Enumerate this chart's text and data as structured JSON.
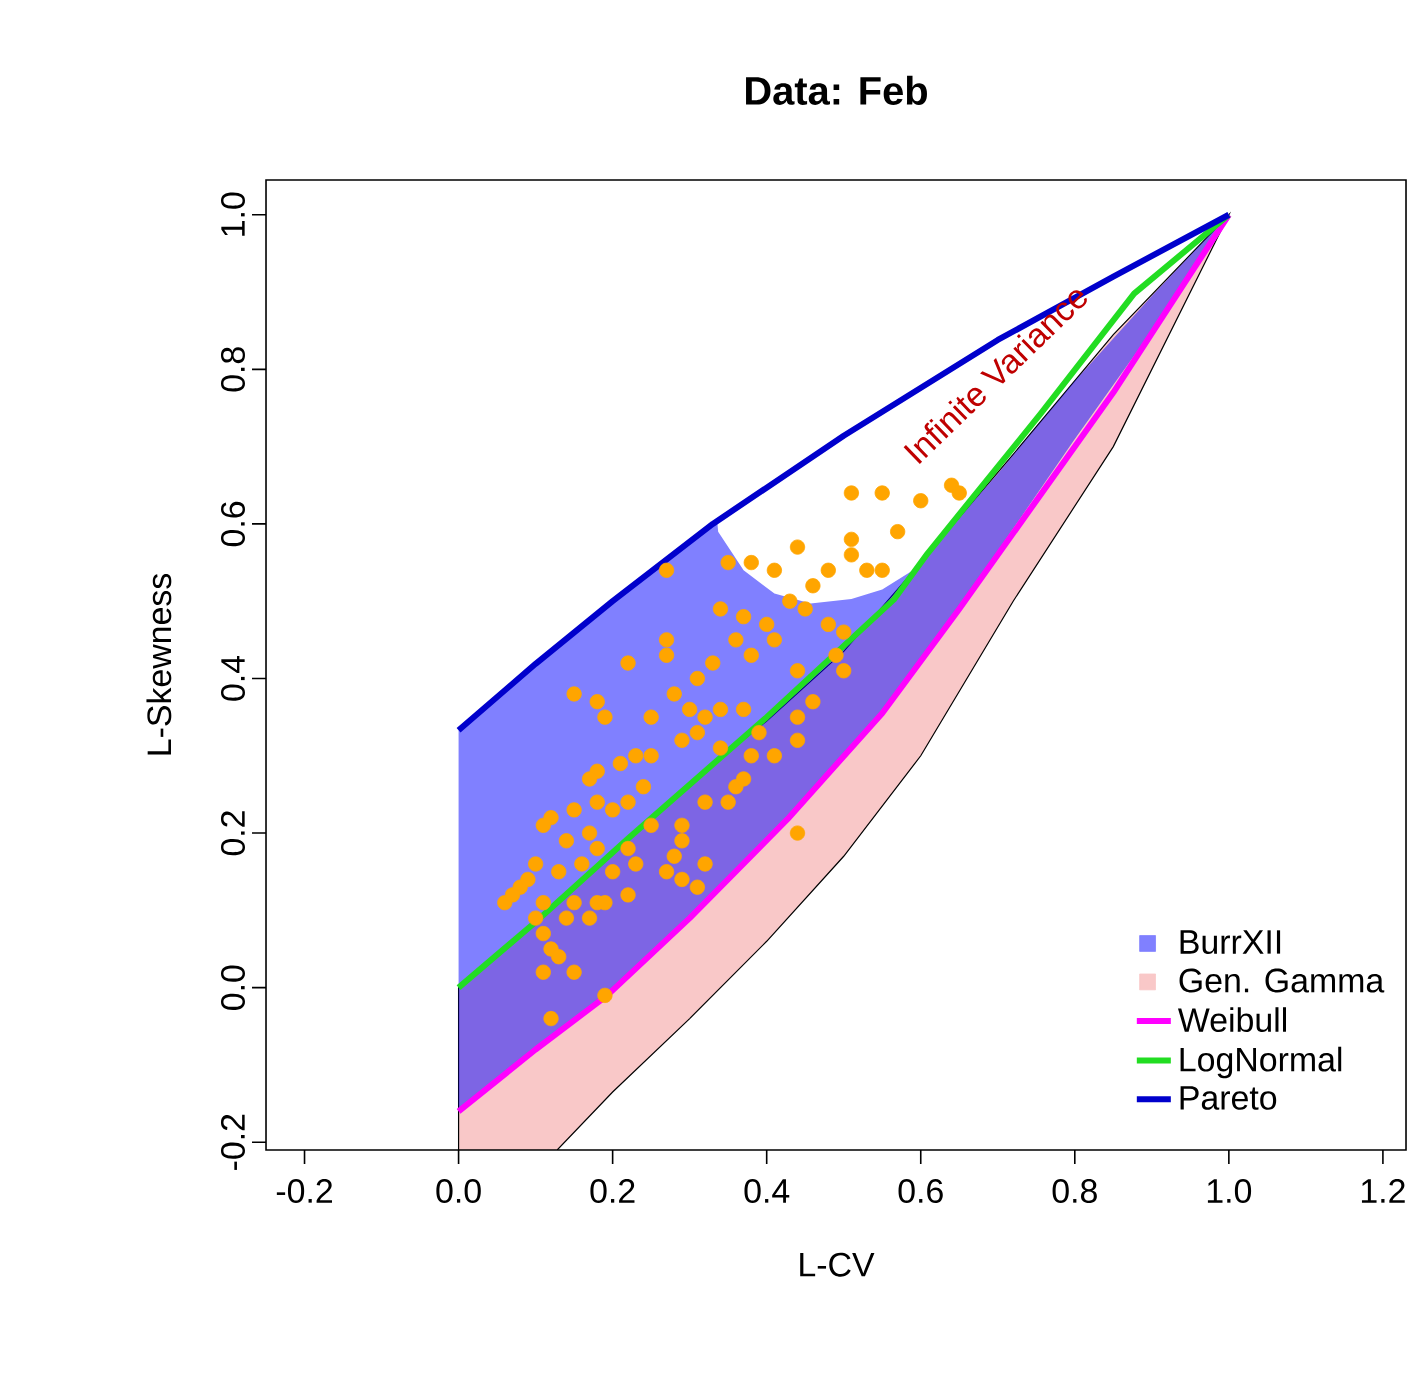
{
  "chart_data": {
    "type": "area",
    "title": "Data: Feb",
    "xlabel": "L-CV",
    "ylabel": "L-Skewness",
    "xlim": [
      -0.25,
      1.23
    ],
    "ylim": [
      -0.21,
      1.045
    ],
    "xticks": [
      -0.2,
      {
        "value": 0,
        "label": "0.0"
      },
      0.2,
      0.4,
      0.6,
      0.8,
      {
        "value": 1,
        "label": "1.0"
      },
      1.2
    ],
    "yticks": [
      -0.2,
      {
        "value": 0,
        "label": "0.0"
      },
      0.2,
      0.4,
      0.6,
      0.8,
      {
        "value": 1,
        "label": "1.0"
      }
    ],
    "legend": "bottom right",
    "annotations": [
      "Infinite Variance"
    ],
    "series": [
      {
        "name": "BurrXII",
        "color": "#8080ff",
        "x": [
          0,
          0.1,
          0.2,
          0.336,
          0.337,
          0.37,
          0.41,
          0.457,
          0.51,
          0.55,
          0.59,
          0.7,
          0.8,
          0.9,
          1
        ],
        "values": [
          null,
          null,
          null,
          null,
          null,
          null,
          null,
          null,
          null,
          null,
          null,
          null,
          null,
          null,
          null
        ],
        "upper": [
          0.333,
          0.419,
          0.5,
          0.601,
          0.59,
          0.54,
          0.51,
          0.497,
          0.503,
          0.515,
          0.54,
          0.665,
          0.785,
          0.895,
          1
        ],
        "lower": [
          -0.16,
          -0.08,
          -0.003,
          0.125,
          0.126,
          0.16,
          0.2,
          0.25,
          0.31,
          0.355,
          0.41,
          0.565,
          0.71,
          0.85,
          1
        ]
      },
      {
        "name": "Gen. Gamma",
        "color": "#f9c8c8",
        "x": [
          0,
          0.128,
          0.2,
          0.3,
          0.4,
          0.5,
          0.6,
          0.72,
          0.85,
          1
        ],
        "values": [
          null,
          null,
          null,
          null,
          null,
          null,
          null,
          null,
          null,
          null
        ],
        "upper": [
          0,
          0.11,
          0.175,
          0.265,
          0.345,
          0.435,
          0.55,
          0.69,
          0.845,
          1
        ],
        "lower": [
          -0.21,
          -0.21,
          -0.135,
          -0.04,
          0.06,
          0.17,
          0.3,
          0.5,
          0.7,
          1
        ]
      },
      {
        "name": "Weibull",
        "type": "line",
        "color": "#ff00ff",
        "x": [
          0,
          0.1,
          0.193,
          0.3,
          0.427,
          0.55,
          0.65,
          0.75,
          0.85,
          1
        ],
        "values": [
          -0.16,
          -0.08,
          -0.01,
          0.09,
          0.218,
          0.355,
          0.49,
          0.63,
          0.77,
          1
        ]
      },
      {
        "name": "LogNormal",
        "type": "line",
        "color": "#22dd22",
        "x": [
          0,
          0.1,
          0.219,
          0.4,
          0.565,
          0.609,
          0.756,
          0.877,
          1
        ],
        "values": [
          0,
          0.085,
          0.192,
          0.35,
          0.502,
          0.562,
          0.743,
          0.898,
          1
        ]
      },
      {
        "name": "Pareto",
        "type": "line",
        "color": "#0000cc",
        "x": [
          0,
          0.1,
          0.2,
          0.33,
          0.5,
          0.7,
          0.85,
          1
        ],
        "values": [
          0.333,
          0.419,
          0.5,
          0.6,
          0.714,
          0.838,
          0.92,
          1
        ]
      },
      {
        "type": "scatter",
        "color": "#ffa500",
        "marker": "circle",
        "x": [
          0.51,
          0.55,
          0.6,
          0.64,
          0.65,
          0.57,
          0.44,
          0.51,
          0.51,
          0.27,
          0.35,
          0.38,
          0.41,
          0.46,
          0.53,
          0.55,
          0.48,
          0.43,
          0.45,
          0.48,
          0.5,
          0.34,
          0.37,
          0.41,
          0.4,
          0.49,
          0.5,
          0.44,
          0.46,
          0.44,
          0.44,
          0.39,
          0.41,
          0.38,
          0.36,
          0.37,
          0.35,
          0.32,
          0.29,
          0.29,
          0.28,
          0.29,
          0.31,
          0.44,
          0.32,
          0.27,
          0.27,
          0.22,
          0.15,
          0.18,
          0.19,
          0.25,
          0.28,
          0.3,
          0.31,
          0.33,
          0.36,
          0.38,
          0.34,
          0.32,
          0.31,
          0.29,
          0.34,
          0.37,
          0.25,
          0.23,
          0.21,
          0.18,
          0.17,
          0.24,
          0.22,
          0.2,
          0.18,
          0.15,
          0.12,
          0.11,
          0.14,
          0.17,
          0.18,
          0.22,
          0.25,
          0.23,
          0.2,
          0.16,
          0.13,
          0.1,
          0.08,
          0.11,
          0.15,
          0.18,
          0.14,
          0.1,
          0.06,
          0.27,
          0.22,
          0.12,
          0.11,
          0.13,
          0.15,
          0.19,
          0.12,
          0.07,
          0.09,
          0.11,
          0.17,
          0.19
        ],
        "values": [
          0.64,
          0.64,
          0.63,
          0.65,
          0.64,
          0.59,
          0.57,
          0.58,
          0.56,
          0.54,
          0.55,
          0.55,
          0.54,
          0.52,
          0.54,
          0.54,
          0.54,
          0.5,
          0.49,
          0.47,
          0.46,
          0.49,
          0.48,
          0.45,
          0.47,
          0.43,
          0.41,
          0.41,
          0.37,
          0.35,
          0.32,
          0.33,
          0.3,
          0.3,
          0.26,
          0.27,
          0.24,
          0.24,
          0.21,
          0.19,
          0.17,
          0.14,
          0.13,
          0.2,
          0.16,
          0.45,
          0.43,
          0.42,
          0.38,
          0.37,
          0.35,
          0.35,
          0.38,
          0.36,
          0.4,
          0.42,
          0.45,
          0.43,
          0.36,
          0.35,
          0.33,
          0.32,
          0.31,
          0.36,
          0.3,
          0.3,
          0.29,
          0.28,
          0.27,
          0.26,
          0.24,
          0.23,
          0.24,
          0.23,
          0.22,
          0.21,
          0.19,
          0.2,
          0.18,
          0.18,
          0.21,
          0.16,
          0.15,
          0.16,
          0.15,
          0.16,
          0.13,
          0.11,
          0.11,
          0.11,
          0.09,
          0.09,
          0.11,
          0.15,
          0.12,
          0.05,
          0.02,
          0.04,
          0.02,
          -0.01,
          -0.04,
          0.12,
          0.14,
          0.07,
          0.09,
          0.11
        ]
      }
    ]
  }
}
